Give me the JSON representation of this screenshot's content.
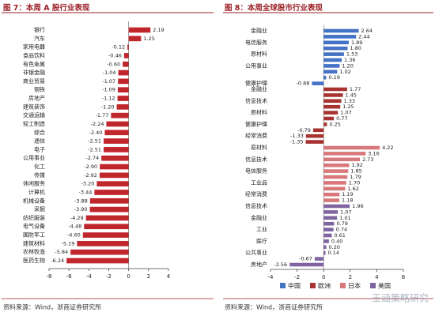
{
  "chart_data": [
    {
      "type": "bar",
      "orientation": "horizontal",
      "title": "图 7：本周 A 股行业表现",
      "categories": [
        "银行",
        "汽车",
        "家用电器",
        "食品饮料",
        "有色金属",
        "非银金融",
        "商业贸易",
        "钢铁",
        "房地产",
        "建筑装饰",
        "交通运输",
        "轻工制造",
        "综合",
        "通信",
        "电子",
        "公用事业",
        "化工",
        "传媒",
        "休闲服务",
        "计算机",
        "机械设备",
        "采掘",
        "纺织服装",
        "电气设备",
        "国防军工",
        "建筑材料",
        "农林牧渔",
        "医药生物"
      ],
      "values": [
        2.19,
        1.25,
        -0.12,
        -0.46,
        -0.6,
        -1.04,
        -1.07,
        -1.09,
        -1.12,
        -1.2,
        -1.77,
        -2.24,
        -2.4,
        -2.51,
        -2.51,
        -2.74,
        -2.9,
        -2.92,
        -3.2,
        -3.44,
        -3.88,
        -3.9,
        -4.29,
        -4.48,
        -4.6,
        -5.19,
        -5.84,
        -6.24
      ],
      "value_labels": [
        "2.19",
        "1.25",
        "-0.12",
        "-0.46",
        "-0.60",
        "-1.04",
        "-1.07",
        "-1.09",
        "-1.12",
        "-1.20",
        "-1.77",
        "-2.24",
        "-2.40",
        "-2.51",
        "-2.51",
        "-2.74",
        "-2.90",
        "-2.92",
        "-3.20",
        "-3.44",
        "-3.88",
        "-3.90",
        "-4.29",
        "-4.48",
        "-4.60",
        "-5.19",
        "-5.84",
        "-6.24"
      ],
      "color": "#c0272d",
      "xlim": [
        -8,
        4
      ],
      "xticks": [
        -8,
        -6,
        -4,
        -2,
        0,
        2,
        4
      ],
      "source": "资料来源：Wind，浙商证券研究所"
    },
    {
      "type": "bar",
      "orientation": "horizontal",
      "title": "图 8：本周全球股市行业表现",
      "categories": [
        "金融业",
        null,
        "电信服务",
        null,
        "原材料",
        null,
        "公用事业",
        null,
        null,
        "健康护理",
        "金融业",
        null,
        "信息技术",
        null,
        "原材料",
        null,
        "健康护理",
        null,
        "经常消费",
        null,
        "原材料",
        null,
        "信息技术",
        null,
        "电信服务",
        null,
        "工业品",
        null,
        "经常消费",
        null,
        "信息技术",
        null,
        "金融业",
        null,
        "工业",
        null,
        "医疗",
        null,
        "公共事业",
        null,
        "房地产"
      ],
      "series": [
        {
          "name": "中国",
          "color": "#4472c4",
          "values": [
            2.64,
            2.44,
            1.89,
            1.8,
            1.53,
            1.36,
            1.2,
            1.02,
            0.19,
            -0.88,
            null,
            null,
            null,
            null,
            null,
            null,
            null,
            null,
            null,
            null,
            null,
            null,
            null,
            null,
            null,
            null,
            null,
            null,
            null,
            null,
            null,
            null,
            null,
            null,
            null,
            null,
            null,
            null,
            null,
            null,
            null
          ],
          "value_labels": [
            "2.64",
            "2.44",
            "1.89",
            "1.80",
            "1.53",
            "1.36",
            "1.20",
            "1.02",
            "0.19",
            "-0.88",
            null,
            null,
            null,
            null,
            null,
            null,
            null,
            null,
            null,
            null,
            null,
            null,
            null,
            null,
            null,
            null,
            null,
            null,
            null,
            null,
            null,
            null,
            null,
            null,
            null,
            null,
            null,
            null,
            null,
            null,
            null
          ]
        },
        {
          "name": "欧洲",
          "color": "#a8322f",
          "values": [
            null,
            null,
            null,
            null,
            null,
            null,
            null,
            null,
            null,
            null,
            1.77,
            1.45,
            1.33,
            1.25,
            1.07,
            0.77,
            0.25,
            -0.79,
            -1.33,
            -1.35,
            null,
            null,
            null,
            null,
            null,
            null,
            null,
            null,
            null,
            null,
            null,
            null,
            null,
            null,
            null,
            null,
            null,
            null,
            null,
            null,
            null
          ],
          "value_labels": [
            null,
            null,
            null,
            null,
            null,
            null,
            null,
            null,
            null,
            null,
            "1.77",
            "1.45",
            "1.33",
            "1.25",
            "1.07",
            "0.77",
            "0.25",
            "-0.79",
            "-1.33",
            "-1.35",
            null,
            null,
            null,
            null,
            null,
            null,
            null,
            null,
            null,
            null,
            null,
            null,
            null,
            null,
            null,
            null,
            null,
            null,
            null,
            null,
            null
          ]
        },
        {
          "name": "日本",
          "color": "#d9787a",
          "values": [
            null,
            null,
            null,
            null,
            null,
            null,
            null,
            null,
            null,
            null,
            null,
            null,
            null,
            null,
            null,
            null,
            null,
            null,
            null,
            null,
            4.22,
            3.16,
            2.73,
            1.92,
            1.85,
            1.79,
            1.7,
            1.62,
            1.19,
            1.18,
            null,
            null,
            null,
            null,
            null,
            null,
            null,
            null,
            null,
            null,
            null
          ],
          "value_labels": [
            null,
            null,
            null,
            null,
            null,
            null,
            null,
            null,
            null,
            null,
            null,
            null,
            null,
            null,
            null,
            null,
            null,
            null,
            null,
            null,
            "4.22",
            "3.16",
            "2.73",
            "1.92",
            "1.85",
            "1.79",
            "1.70",
            "1.62",
            "1.19",
            "1.18",
            null,
            null,
            null,
            null,
            null,
            null,
            null,
            null,
            null,
            null,
            null
          ]
        },
        {
          "name": "美国",
          "color": "#8064a2",
          "values": [
            null,
            null,
            null,
            null,
            null,
            null,
            null,
            null,
            null,
            null,
            null,
            null,
            null,
            null,
            null,
            null,
            null,
            null,
            null,
            null,
            null,
            null,
            null,
            null,
            null,
            null,
            null,
            null,
            null,
            null,
            1.96,
            1.07,
            1.01,
            0.79,
            0.74,
            0.61,
            0.4,
            0.2,
            0.14,
            -0.67,
            -2.56
          ],
          "value_labels": [
            null,
            null,
            null,
            null,
            null,
            null,
            null,
            null,
            null,
            null,
            null,
            null,
            null,
            null,
            null,
            null,
            null,
            null,
            null,
            null,
            null,
            null,
            null,
            null,
            null,
            null,
            null,
            null,
            null,
            null,
            "1.96",
            "1.07",
            "1.01",
            "0.79",
            "0.74",
            "0.61",
            "0.40",
            "0.20",
            "0.14",
            "-0.67",
            "-2.56"
          ]
        }
      ],
      "xlim": [
        -4,
        6
      ],
      "xticks": [
        -4,
        -2,
        0,
        2,
        4,
        6
      ],
      "legend": "bottom",
      "source": "资料来源：Wind，浙商证券研究所"
    }
  ],
  "watermark": "王涵策略研究"
}
